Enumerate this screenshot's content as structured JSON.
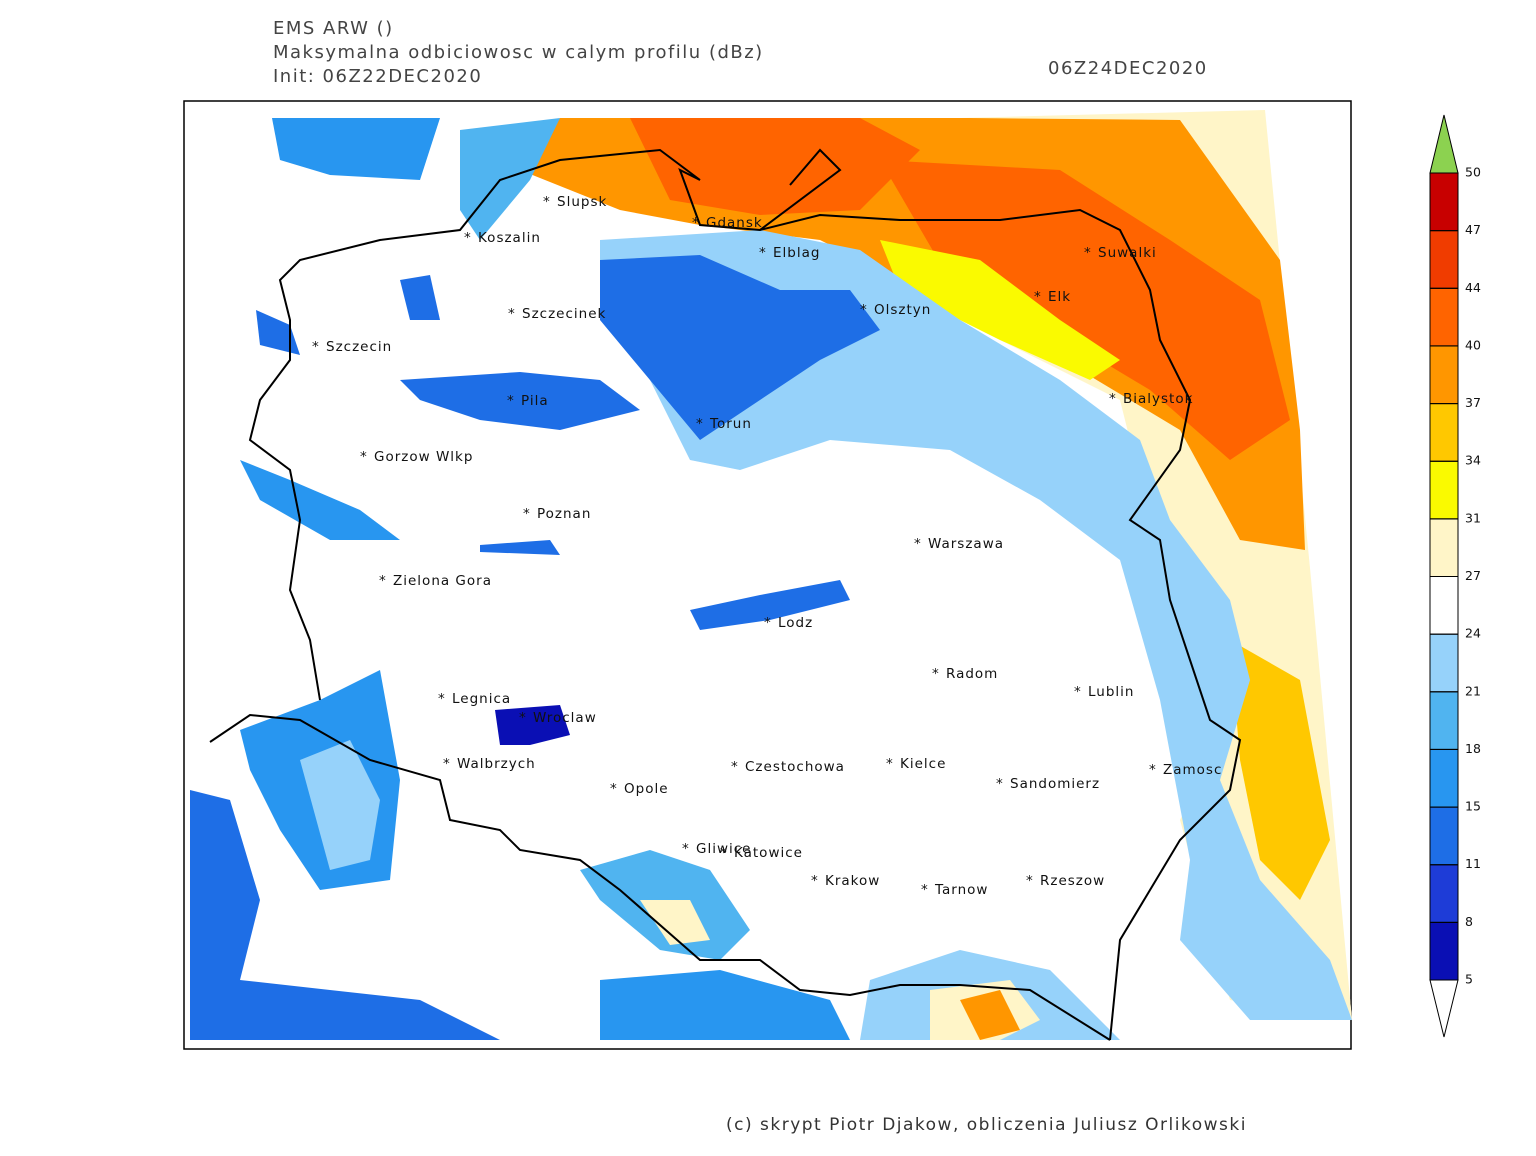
{
  "header": {
    "model": "EMS ARW ()",
    "field": "Maksymalna odbiciowosc w calym profilu (dBz)",
    "init": "Init: 06Z22DEC2020",
    "valid": "06Z24DEC2020"
  },
  "cities": [
    "Slupsk",
    "Koszalin",
    "Gdansk",
    "Elblag",
    "Suwalki",
    "Elk",
    "Olsztyn",
    "Szczecinek",
    "Szczecin",
    "Bialystok",
    "Pila",
    "Torun",
    "Gorzow Wlkp",
    "Poznan",
    "Warszawa",
    "Zielona Gora",
    "Lodz",
    "Radom",
    "Lublin",
    "Legnica",
    "Wroclaw",
    "Walbrzych",
    "Czestochowa",
    "Kielce",
    "Zamosc",
    "Opole",
    "Sandomierz",
    "Gliwice",
    "Katowice",
    "Krakow",
    "Tarnow",
    "Rzeszow"
  ],
  "colorbar": {
    "levels": [
      5,
      8,
      11,
      15,
      18,
      21,
      24,
      27,
      31,
      34,
      37,
      40,
      44,
      47,
      50
    ],
    "colors": [
      "#0a0fb4",
      "#1e3cd7",
      "#1e6ee6",
      "#2896f0",
      "#50b4f0",
      "#96d2fa",
      "#ffffff",
      "#fff5c8",
      "#fafa00",
      "#ffc800",
      "#ff9600",
      "#ff6400",
      "#f03c00",
      "#c80000"
    ],
    "below_color": "#ffffff",
    "above_color": "#8cd250"
  },
  "footer": "(c) skrypt Piotr Djakow, obliczenia Juliusz Orlikowski"
}
